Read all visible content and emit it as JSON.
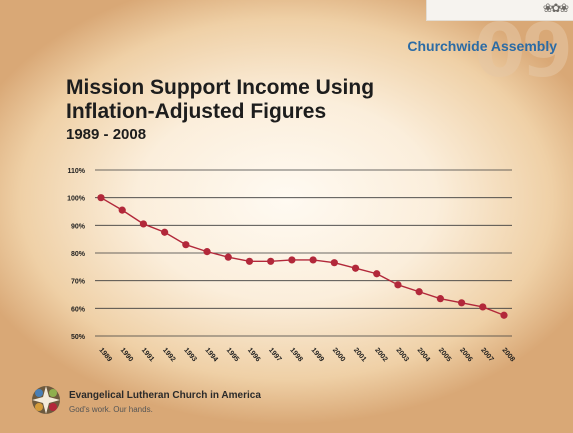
{
  "header": {
    "assembly_label": "Churchwide Assembly",
    "year_mark": "09"
  },
  "footer": {
    "org_name": "Evangelical Lutheran Church in America",
    "tagline": "God's work. Our hands."
  },
  "colors": {
    "series": "#b2283a",
    "accent": "#2b6ba5"
  },
  "chart_data": {
    "type": "line",
    "title": [
      "Mission Support Income Using",
      "Inflation-Adjusted Figures"
    ],
    "subtitle": "1989 - 2008",
    "xlabel": "",
    "ylabel": "",
    "categories": [
      "1989",
      "1990",
      "1991",
      "1992",
      "1993",
      "1994",
      "1995",
      "1996",
      "1997",
      "1998",
      "1999",
      "2000",
      "2001",
      "2002",
      "2003",
      "2004",
      "2005",
      "2006",
      "2007",
      "2008"
    ],
    "series": [
      {
        "values": [
          100,
          95.5,
          90.5,
          87.5,
          83,
          80.5,
          78.5,
          77,
          77,
          77.5,
          77.5,
          76.5,
          74.5,
          72.5,
          68.5,
          66,
          63.5,
          62,
          60.5,
          57.5
        ]
      }
    ],
    "ylim": [
      50,
      110
    ],
    "yticks": [
      "50%",
      "60%",
      "70%",
      "80%",
      "90%",
      "100%",
      "110%"
    ],
    "ytick_values": [
      50,
      60,
      70,
      80,
      90,
      100,
      110
    ],
    "grid": "horizontal",
    "legend": "none"
  }
}
